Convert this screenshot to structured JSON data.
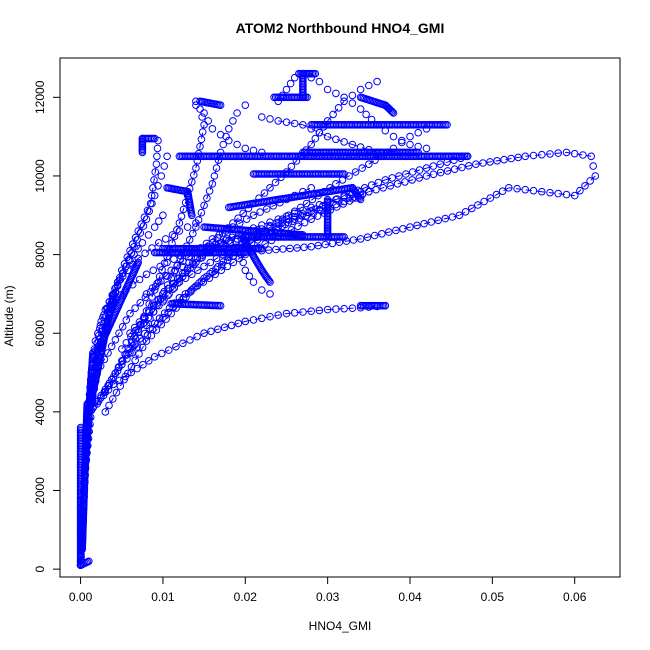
{
  "chart_data": {
    "type": "scatter",
    "title": "ATOM2 Northbound HNO4_GMI",
    "xlabel": "HNO4_GMI",
    "ylabel": "Altitude (m)",
    "xlim": [
      -0.0025,
      0.0655
    ],
    "ylim": [
      -200,
      13000
    ],
    "x_ticks": [
      0.0,
      0.01,
      0.02,
      0.03,
      0.04,
      0.05,
      0.06
    ],
    "x_tick_labels": [
      "0.00",
      "0.01",
      "0.02",
      "0.03",
      "0.04",
      "0.05",
      "0.06"
    ],
    "y_ticks": [
      0,
      2000,
      4000,
      6000,
      8000,
      10000,
      12000
    ],
    "y_tick_labels": [
      "0",
      "2000",
      "4000",
      "6000",
      "8000",
      "10000",
      "12000"
    ],
    "marker": "open-circle",
    "connect_sparse_points": true,
    "grid": false,
    "legend": "none",
    "color": "#0000ff",
    "series": [
      {
        "x": [
          0.0,
          0.0003,
          0.0008,
          0.0013,
          0.0018,
          0.003,
          0.0055,
          0.008,
          0.0105,
          0.013,
          0.0155,
          0.018,
          0.02
        ],
        "y": [
          100,
          1800,
          3700,
          5000,
          5800,
          6600,
          7100,
          7500,
          7800,
          8050,
          8200,
          8350,
          8450
        ]
      },
      {
        "x": [
          0.0,
          0.0004,
          0.0009,
          0.0015,
          0.0025,
          0.0045,
          0.007,
          0.0095,
          0.012,
          0.014
        ],
        "y": [
          150,
          2000,
          3800,
          5200,
          6300,
          7300,
          7900,
          8300,
          8600,
          8800
        ]
      },
      {
        "x": [
          0.0,
          0.0005,
          0.001,
          0.002,
          0.0035,
          0.0055,
          0.0075,
          0.009,
          0.01
        ],
        "y": [
          200,
          2200,
          4000,
          5500,
          6800,
          7700,
          8300,
          8700,
          9000
        ]
      },
      {
        "x": [
          0.0,
          0.0005,
          0.0012,
          0.0025,
          0.0045,
          0.0065,
          0.008,
          0.009,
          0.0098,
          0.0105
        ],
        "y": [
          100,
          2400,
          4200,
          5800,
          7200,
          8200,
          8900,
          9500,
          10000,
          10500
        ]
      },
      {
        "x": [
          0.0,
          0.0006,
          0.0015,
          0.003,
          0.005,
          0.007,
          0.0085,
          0.0092,
          0.0094
        ],
        "y": [
          120,
          2600,
          4400,
          6100,
          7600,
          8600,
          9300,
          10300,
          10900
        ]
      },
      {
        "x": [
          0.008,
          0.0095,
          0.0115,
          0.014,
          0.0165,
          0.019,
          0.022,
          0.025,
          0.028,
          0.03
        ],
        "y": [
          7000,
          7300,
          7600,
          7900,
          8150,
          8400,
          8650,
          8900,
          9100,
          9200
        ]
      },
      {
        "x": [
          0.001,
          0.004,
          0.009,
          0.015,
          0.02,
          0.025,
          0.03,
          0.034,
          0.036,
          0.037
        ],
        "y": [
          4000,
          4700,
          5400,
          6000,
          6300,
          6500,
          6600,
          6650,
          6680,
          6700
        ]
      },
      {
        "x": [
          0.0015,
          0.005,
          0.01,
          0.015,
          0.02,
          0.026,
          0.032,
          0.037,
          0.042,
          0.047
        ],
        "y": [
          4100,
          5200,
          6400,
          7400,
          8200,
          8900,
          9500,
          9900,
          10200,
          10500
        ]
      },
      {
        "x": [
          0.002,
          0.006,
          0.012,
          0.02,
          0.028,
          0.035,
          0.042,
          0.048,
          0.054,
          0.059,
          0.062,
          0.0625,
          0.06,
          0.056,
          0.052,
          0.046,
          0.04,
          0.034,
          0.028,
          0.022
        ],
        "y": [
          4200,
          5600,
          6900,
          8000,
          8900,
          9600,
          10000,
          10300,
          10500,
          10600,
          10500,
          10000,
          9500,
          9600,
          9700,
          9000,
          8700,
          8400,
          8200,
          8100
        ]
      },
      {
        "x": [
          0.003,
          0.008,
          0.014,
          0.02,
          0.026,
          0.031,
          0.035,
          0.038,
          0.04,
          0.042
        ],
        "y": [
          4000,
          5800,
          7200,
          8300,
          9100,
          9800,
          10300,
          10700,
          11000,
          11200
        ]
      },
      {
        "x": [
          0.005,
          0.01,
          0.016,
          0.021,
          0.025,
          0.028,
          0.03,
          0.032,
          0.034,
          0.036
        ],
        "y": [
          5600,
          7000,
          8300,
          9300,
          10100,
          10800,
          11400,
          11900,
          12200,
          12400
        ]
      },
      {
        "x": [
          0.008,
          0.011,
          0.014,
          0.016,
          0.017,
          0.018,
          0.019,
          0.02
        ],
        "y": [
          6200,
          7400,
          8700,
          9800,
          10600,
          11200,
          11600,
          11800
        ]
      },
      {
        "x": [
          0.006,
          0.009,
          0.012,
          0.014,
          0.015,
          0.0145,
          0.014
        ],
        "y": [
          5500,
          7100,
          8800,
          10200,
          11300,
          11700,
          11900
        ]
      },
      {
        "x": [
          0.01,
          0.013,
          0.016,
          0.02,
          0.024,
          0.028,
          0.031,
          0.034
        ],
        "y": [
          6800,
          7600,
          8200,
          8600,
          8900,
          9200,
          9400,
          9600
        ]
      },
      {
        "x": [
          0.002,
          0.006,
          0.011,
          0.016,
          0.021,
          0.025,
          0.028
        ],
        "y": [
          5000,
          6500,
          7600,
          8400,
          9000,
          9400,
          9700
        ]
      },
      {
        "x": [
          0.003,
          0.007,
          0.012,
          0.018,
          0.024,
          0.03,
          0.034,
          0.035
        ],
        "y": [
          4500,
          6100,
          7300,
          8100,
          8700,
          9200,
          9500,
          9600
        ]
      },
      {
        "x": [
          0.006,
          0.01,
          0.014,
          0.017,
          0.0185,
          0.0195,
          0.02,
          0.021,
          0.022,
          0.023
        ],
        "y": [
          6000,
          7000,
          7800,
          8300,
          8500,
          8000,
          7600,
          7300,
          7100,
          7000
        ]
      },
      {
        "x": [
          0.024,
          0.025,
          0.026,
          0.027,
          0.028,
          0.029,
          0.03,
          0.032,
          0.034,
          0.036,
          0.038,
          0.04,
          0.042
        ],
        "y": [
          11900,
          12200,
          12500,
          12600,
          12500,
          12400,
          12200,
          12000,
          11700,
          11300,
          11000,
          10800,
          10700
        ]
      },
      {
        "x": [
          0.022,
          0.024,
          0.027,
          0.03,
          0.033,
          0.036
        ],
        "y": [
          11500,
          11400,
          11300,
          11000,
          10800,
          10600
        ]
      },
      {
        "x": [
          0.014,
          0.015,
          0.016,
          0.018,
          0.02,
          0.022
        ],
        "y": [
          11800,
          11600,
          11200,
          10900,
          10700,
          10600
        ]
      }
    ],
    "dense_segments": [
      {
        "x1": 0.0265,
        "y1": 12600,
        "x2": 0.0285,
        "y2": 12600
      },
      {
        "x1": 0.027,
        "y1": 12600,
        "x2": 0.027,
        "y2": 12000
      },
      {
        "x1": 0.0235,
        "y1": 12000,
        "x2": 0.0275,
        "y2": 12000
      },
      {
        "x1": 0.034,
        "y1": 12000,
        "x2": 0.037,
        "y2": 11800
      },
      {
        "x1": 0.037,
        "y1": 11800,
        "x2": 0.038,
        "y2": 11600
      },
      {
        "x1": 0.0145,
        "y1": 11900,
        "x2": 0.017,
        "y2": 11800
      },
      {
        "x1": 0.028,
        "y1": 11300,
        "x2": 0.0445,
        "y2": 11300
      },
      {
        "x1": 0.0075,
        "y1": 10950,
        "x2": 0.009,
        "y2": 10950
      },
      {
        "x1": 0.0075,
        "y1": 10950,
        "x2": 0.0075,
        "y2": 10600
      },
      {
        "x1": 0.012,
        "y1": 10500,
        "x2": 0.047,
        "y2": 10500
      },
      {
        "x1": 0.027,
        "y1": 10600,
        "x2": 0.041,
        "y2": 10600
      },
      {
        "x1": 0.021,
        "y1": 10050,
        "x2": 0.032,
        "y2": 10050
      },
      {
        "x1": 0.0105,
        "y1": 9700,
        "x2": 0.013,
        "y2": 9600
      },
      {
        "x1": 0.013,
        "y1": 9600,
        "x2": 0.0135,
        "y2": 9000
      },
      {
        "x1": 0.018,
        "y1": 9200,
        "x2": 0.033,
        "y2": 9700
      },
      {
        "x1": 0.03,
        "y1": 9400,
        "x2": 0.03,
        "y2": 8500
      },
      {
        "x1": 0.015,
        "y1": 8700,
        "x2": 0.027,
        "y2": 8500
      },
      {
        "x1": 0.02,
        "y1": 8450,
        "x2": 0.032,
        "y2": 8450
      },
      {
        "x1": 0.01,
        "y1": 8150,
        "x2": 0.022,
        "y2": 8150
      },
      {
        "x1": 0.009,
        "y1": 8050,
        "x2": 0.02,
        "y2": 8050
      },
      {
        "x1": 0.033,
        "y1": 9700,
        "x2": 0.034,
        "y2": 9400
      },
      {
        "x1": 0.011,
        "y1": 6750,
        "x2": 0.017,
        "y2": 6700
      },
      {
        "x1": 0.034,
        "y1": 6700,
        "x2": 0.037,
        "y2": 6700
      },
      {
        "x1": 0.0195,
        "y1": 8500,
        "x2": 0.022,
        "y2": 7600
      },
      {
        "x1": 0.022,
        "y1": 7600,
        "x2": 0.023,
        "y2": 7300
      },
      {
        "x1": 0.0,
        "y1": 100,
        "x2": 0.001,
        "y2": 200
      },
      {
        "x1": 0.0,
        "y1": 200,
        "x2": 0.0,
        "y2": 3600
      },
      {
        "x1": 0.0002,
        "y1": 500,
        "x2": 0.0008,
        "y2": 4200
      },
      {
        "x1": 0.0005,
        "y1": 2500,
        "x2": 0.0015,
        "y2": 5500
      },
      {
        "x1": 0.001,
        "y1": 4000,
        "x2": 0.004,
        "y2": 7000
      },
      {
        "x1": 0.002,
        "y1": 5500,
        "x2": 0.007,
        "y2": 7800
      }
    ]
  }
}
